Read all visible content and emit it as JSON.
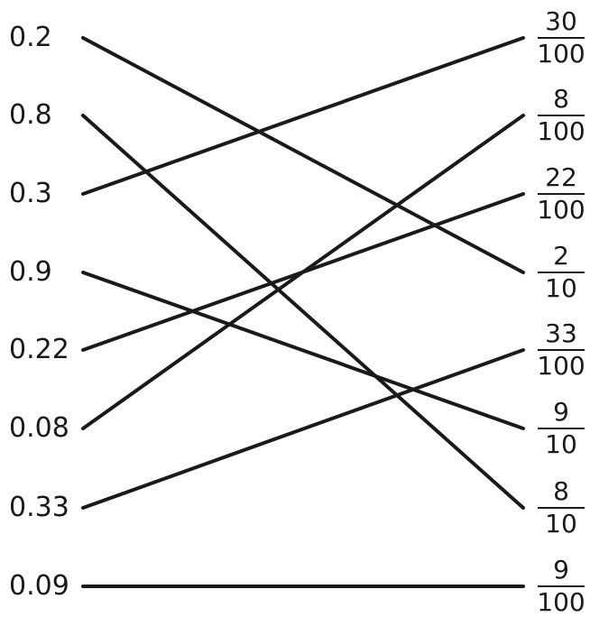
{
  "left_items": [
    "0.2",
    "0.8",
    "0.3",
    "0.9",
    "0.22",
    "0.08",
    "0.33",
    "0.09"
  ],
  "right_items": [
    {
      "numerator": "30",
      "denominator": "100"
    },
    {
      "numerator": "8",
      "denominator": "100"
    },
    {
      "numerator": "22",
      "denominator": "100"
    },
    {
      "numerator": "2",
      "denominator": "10"
    },
    {
      "numerator": "33",
      "denominator": "100"
    },
    {
      "numerator": "9",
      "denominator": "10"
    },
    {
      "numerator": "8",
      "denominator": "10"
    },
    {
      "numerator": "9",
      "denominator": "100"
    }
  ],
  "connections": [
    {
      "from": 0,
      "to": 3
    },
    {
      "from": 1,
      "to": 6
    },
    {
      "from": 2,
      "to": 0
    },
    {
      "from": 3,
      "to": 5
    },
    {
      "from": 4,
      "to": 2
    },
    {
      "from": 5,
      "to": 1
    },
    {
      "from": 6,
      "to": 4
    },
    {
      "from": 7,
      "to": 7
    }
  ],
  "colors": {
    "line": "#1a1a1a",
    "text": "#1a1a1a",
    "background": "#ffffff"
  }
}
